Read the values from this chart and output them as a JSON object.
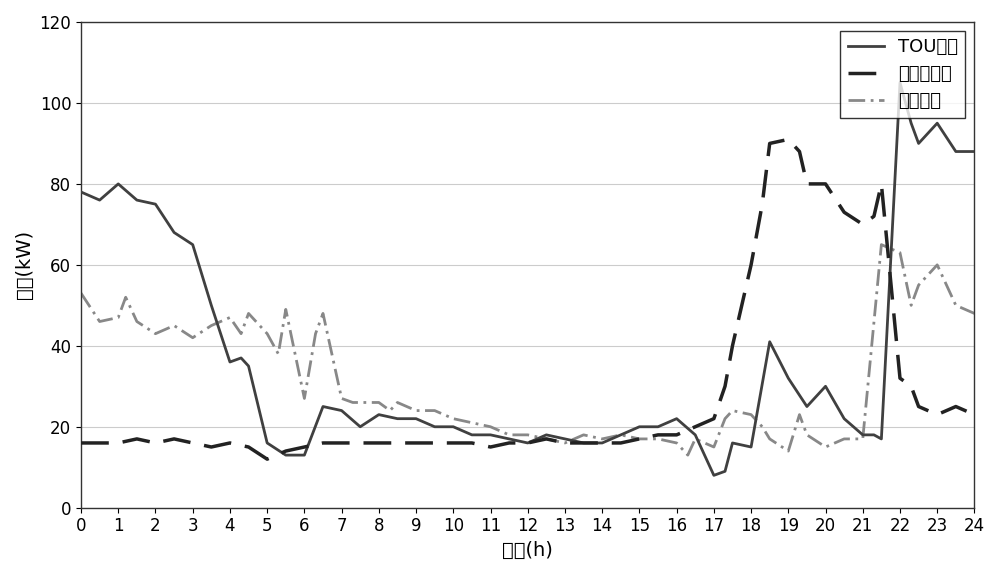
{
  "title": "",
  "xlabel": "时间(h)",
  "ylabel": "功率(kW)",
  "xlim": [
    0,
    24
  ],
  "ylim": [
    0,
    120
  ],
  "xticks": [
    0,
    1,
    2,
    3,
    4,
    5,
    6,
    7,
    8,
    9,
    10,
    11,
    12,
    13,
    14,
    15,
    16,
    17,
    18,
    19,
    20,
    21,
    22,
    23,
    24
  ],
  "yticks": [
    0,
    20,
    40,
    60,
    80,
    100,
    120
  ],
  "background_color": "#ffffff",
  "grid_color": "#cccccc",
  "tou_x": [
    0,
    0.5,
    1,
    1.5,
    2,
    2.5,
    3,
    3.5,
    4,
    4.3,
    4.5,
    5,
    5.5,
    6,
    6.5,
    7,
    7.5,
    8,
    8.5,
    9,
    9.5,
    10,
    10.5,
    11,
    11.5,
    12,
    12.5,
    13,
    13.5,
    14,
    14.5,
    15,
    15.5,
    16,
    16.5,
    17,
    17.3,
    17.5,
    18,
    18.5,
    19,
    19.5,
    20,
    20.5,
    21,
    21.3,
    21.5,
    22,
    22.3,
    22.5,
    23,
    23.5,
    24
  ],
  "tou_y": [
    78,
    76,
    80,
    76,
    75,
    68,
    65,
    50,
    36,
    37,
    35,
    16,
    13,
    13,
    25,
    24,
    20,
    23,
    22,
    22,
    20,
    20,
    18,
    18,
    17,
    16,
    18,
    17,
    16,
    16,
    18,
    20,
    20,
    22,
    18,
    8,
    9,
    16,
    15,
    41,
    32,
    25,
    30,
    22,
    18,
    18,
    17,
    105,
    95,
    90,
    95,
    88,
    88
  ],
  "uncontrolled_x": [
    0,
    0.5,
    1,
    1.5,
    2,
    2.5,
    3,
    3.5,
    4,
    4.5,
    5,
    5.5,
    6,
    6.5,
    7,
    7.5,
    8,
    8.5,
    9,
    9.5,
    10,
    10.5,
    11,
    11.5,
    12,
    12.5,
    13,
    13.5,
    14,
    14.5,
    15,
    15.5,
    16,
    16.5,
    17,
    17.3,
    17.5,
    18,
    18.3,
    18.5,
    19,
    19.3,
    19.5,
    20,
    20.5,
    21,
    21.3,
    21.5,
    22,
    22.3,
    22.5,
    23,
    23.5,
    24
  ],
  "uncontrolled_y": [
    16,
    16,
    16,
    17,
    16,
    17,
    16,
    15,
    16,
    15,
    12,
    14,
    15,
    16,
    16,
    16,
    16,
    16,
    16,
    16,
    16,
    16,
    15,
    16,
    16,
    17,
    16,
    16,
    16,
    16,
    17,
    18,
    18,
    20,
    22,
    30,
    40,
    60,
    75,
    90,
    91,
    88,
    80,
    80,
    73,
    70,
    72,
    80,
    32,
    30,
    25,
    23,
    25,
    23
  ],
  "optimized_x": [
    0,
    0.5,
    1,
    1.2,
    1.5,
    2,
    2.5,
    3,
    3.5,
    4,
    4.3,
    4.5,
    5,
    5.3,
    5.5,
    6,
    6.3,
    6.5,
    7,
    7.3,
    7.5,
    8,
    8.3,
    8.5,
    9,
    9.5,
    10,
    10.5,
    11,
    11.5,
    12,
    12.5,
    13,
    13.5,
    14,
    14.5,
    15,
    15.5,
    16,
    16.3,
    16.5,
    17,
    17.3,
    17.5,
    18,
    18.3,
    18.5,
    19,
    19.3,
    19.5,
    20,
    20.5,
    21,
    21.5,
    22,
    22.3,
    22.5,
    23,
    23.5,
    24
  ],
  "optimized_y": [
    53,
    46,
    47,
    52,
    46,
    43,
    45,
    42,
    45,
    47,
    43,
    48,
    43,
    38,
    49,
    27,
    43,
    48,
    27,
    26,
    26,
    26,
    24,
    26,
    24,
    24,
    22,
    21,
    20,
    18,
    18,
    17,
    16,
    18,
    17,
    18,
    17,
    17,
    16,
    13,
    17,
    15,
    22,
    24,
    23,
    20,
    17,
    14,
    23,
    18,
    15,
    17,
    17,
    65,
    63,
    50,
    55,
    60,
    50,
    48
  ],
  "tou_color": "#404040",
  "tou_linestyle": "solid",
  "tou_linewidth": 2.0,
  "tou_label": "TOU充电",
  "uncontrolled_color": "#222222",
  "uncontrolled_linestyle": "dashed",
  "uncontrolled_linewidth": 2.5,
  "uncontrolled_label": "无控制充电",
  "optimized_color": "#888888",
  "optimized_linestyle": "dashdot",
  "optimized_linewidth": 2.0,
  "optimized_label": "优化充电",
  "legend_loc": "upper right",
  "legend_fontsize": 13,
  "axis_fontsize": 14,
  "tick_fontsize": 12
}
